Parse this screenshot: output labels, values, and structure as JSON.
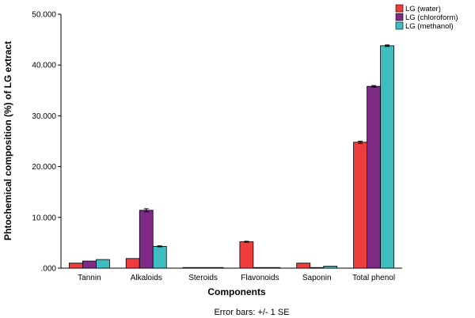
{
  "chart_data": {
    "type": "bar",
    "categories": [
      "Tannin",
      "Alkaloids",
      "Steroids",
      "Flavonoids",
      "Saponin",
      "Total phenol"
    ],
    "series": [
      {
        "name": "LG (water)",
        "color": "#ee3b3b",
        "values": [
          1.0,
          1.9,
          0.05,
          5.2,
          1.0,
          24.8
        ],
        "errors": [
          0.0,
          0.0,
          0.0,
          0.1,
          0.0,
          0.2
        ]
      },
      {
        "name": "LG (chloroform)",
        "color": "#7e2a86",
        "values": [
          1.4,
          11.4,
          0.05,
          0.05,
          0.05,
          35.8
        ],
        "errors": [
          0.0,
          0.3,
          0.0,
          0.0,
          0.0,
          0.15
        ]
      },
      {
        "name": "LG (methanol)",
        "color": "#3fbcc0",
        "values": [
          1.7,
          4.3,
          0.05,
          0.05,
          0.4,
          43.8
        ],
        "errors": [
          0.0,
          0.1,
          0.0,
          0.0,
          0.0,
          0.15
        ]
      }
    ],
    "ylabel": "Phtochemical composition (%) of LG extract",
    "xlabel": "Components",
    "ylim": [
      0,
      50
    ],
    "yticks": [
      0,
      10,
      20,
      30,
      40,
      50
    ],
    "ytick_labels": [
      ".000",
      "10.000",
      "20.000",
      "30.000",
      "40.000",
      "50.000"
    ],
    "grid": false,
    "legend_position": "top-right",
    "note": "Error bars: +/- 1 SE"
  }
}
